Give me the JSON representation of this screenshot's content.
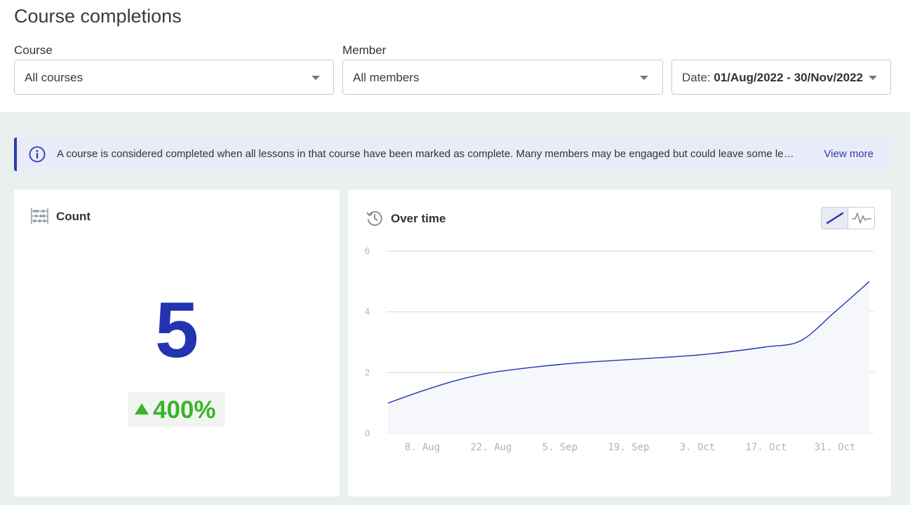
{
  "page": {
    "title": "Course completions"
  },
  "filters": {
    "course": {
      "label": "Course",
      "value": "All courses"
    },
    "member": {
      "label": "Member",
      "value": "All members"
    },
    "date": {
      "label": "Date:",
      "value": "01/Aug/2022 - 30/Nov/2022"
    }
  },
  "banner": {
    "text": "A course is considered completed when all lessons in that course have been marked as complete. Many members may be engaged but could leave some le…",
    "link": "View more"
  },
  "count_card": {
    "title": "Count",
    "value": "5",
    "delta": "400%",
    "delta_direction": "up",
    "delta_color": "#3ab52a",
    "icon": "abacus-icon"
  },
  "time_card": {
    "title": "Over time",
    "icon": "history-icon",
    "toggle": {
      "options": [
        "line-chart-icon",
        "sparkline-icon"
      ],
      "selected": "line-chart-icon"
    }
  },
  "colors": {
    "accent": "#2433b0",
    "positive": "#3ab52a",
    "banner_bg": "#e9ebf8",
    "content_bg": "#eaefef"
  },
  "chart_data": {
    "type": "area",
    "title": "",
    "xlabel": "",
    "ylabel": "",
    "ylim": [
      0,
      6
    ],
    "yticks": [
      0,
      2,
      4,
      6
    ],
    "xticks": [
      "8. Aug",
      "22. Aug",
      "5. Sep",
      "19. Sep",
      "3. Oct",
      "17. Oct",
      "31. Oct"
    ],
    "grid": true,
    "series": [
      {
        "x": [
          "2022-08-01",
          "2022-08-08",
          "2022-08-15",
          "2022-08-22",
          "2022-08-29",
          "2022-09-05",
          "2022-09-12",
          "2022-09-19",
          "2022-09-26",
          "2022-10-03",
          "2022-10-10",
          "2022-10-17",
          "2022-10-24",
          "2022-10-31",
          "2022-11-07"
        ],
        "values": [
          1.0,
          1.4,
          1.75,
          2.0,
          2.15,
          2.27,
          2.36,
          2.43,
          2.5,
          2.58,
          2.7,
          2.85,
          3.05,
          4.0,
          5.0
        ]
      }
    ]
  }
}
